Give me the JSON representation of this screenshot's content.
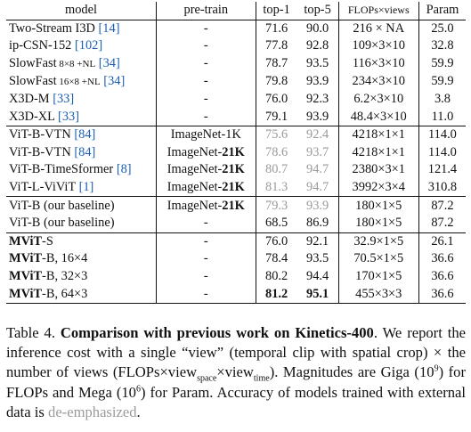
{
  "table": {
    "headers": {
      "model": "model",
      "pretrain": "pre-train",
      "top1": "top-1",
      "top5": "top-5",
      "flops": "FLOPs×views",
      "param": "Param"
    },
    "groups": [
      {
        "rows": [
          {
            "model": "Two-Stream I3D",
            "cite": "[14]",
            "extra": "",
            "pretrain": "-",
            "pretrain_bold": "",
            "top1": "71.6",
            "top5": "90.0",
            "flops": "216 × NA",
            "param": "25.0",
            "deemph": false
          },
          {
            "model": "ip-CSN-152",
            "cite": "[102]",
            "extra": "",
            "pretrain": "-",
            "pretrain_bold": "",
            "top1": "77.8",
            "top5": "92.8",
            "flops": "109×3×10",
            "param": "32.8",
            "deemph": false
          },
          {
            "model": "SlowFast",
            "cite": "[34]",
            "extra": " 8×8 +NL",
            "pretrain": "-",
            "pretrain_bold": "",
            "top1": "78.7",
            "top5": "93.5",
            "flops": "116×3×10",
            "param": "59.9",
            "deemph": false
          },
          {
            "model": "SlowFast",
            "cite": "[34]",
            "extra": " 16×8 +NL",
            "pretrain": "-",
            "pretrain_bold": "",
            "top1": "79.8",
            "top5": "93.9",
            "flops": "234×3×10",
            "param": "59.9",
            "deemph": false
          },
          {
            "model": "X3D-M",
            "cite": "[33]",
            "extra": "",
            "pretrain": "-",
            "pretrain_bold": "",
            "top1": "76.0",
            "top5": "92.3",
            "flops": "6.2×3×10",
            "param": "3.8",
            "deemph": false
          },
          {
            "model": "X3D-XL",
            "cite": "[33]",
            "extra": "",
            "pretrain": "-",
            "pretrain_bold": "",
            "top1": "79.1",
            "top5": "93.9",
            "flops": "48.4×3×10",
            "param": "11.0",
            "deemph": false
          }
        ]
      },
      {
        "rows": [
          {
            "model": "ViT-B-VTN",
            "cite": "[84]",
            "extra": "",
            "pretrain": "ImageNet-1K",
            "pretrain_bold": "",
            "top1": "75.6",
            "top5": "92.4",
            "flops": "4218×1×1",
            "param": "114.0",
            "deemph": true
          },
          {
            "model": "ViT-B-VTN",
            "cite": "[84]",
            "extra": "",
            "pretrain": "ImageNet-",
            "pretrain_bold": "21K",
            "top1": "78.6",
            "top5": "93.7",
            "flops": "4218×1×1",
            "param": "114.0",
            "deemph": true
          },
          {
            "model": "ViT-B-TimeSformer",
            "cite": "[8]",
            "extra": "",
            "pretrain": "ImageNet-",
            "pretrain_bold": "21K",
            "top1": "80.7",
            "top5": "94.7",
            "flops": "2380×3×1",
            "param": "121.4",
            "deemph": true
          },
          {
            "model": "ViT-L-ViViT",
            "cite": "[1]",
            "extra": "",
            "pretrain": "ImageNet-",
            "pretrain_bold": "21K",
            "top1": "81.3",
            "top5": "94.7",
            "flops": "3992×3×4",
            "param": "310.8",
            "deemph": true
          }
        ]
      },
      {
        "rows": [
          {
            "model": "ViT-B (our baseline)",
            "cite": "",
            "extra": "",
            "pretrain": "ImageNet-",
            "pretrain_bold": "21K",
            "top1": "79.3",
            "top5": "93.9",
            "flops": "180×1×5",
            "param": "87.2",
            "deemph": true
          },
          {
            "model": "ViT-B (our baseline)",
            "cite": "",
            "extra": "",
            "pretrain": "-",
            "pretrain_bold": "",
            "top1": "68.5",
            "top5": "86.9",
            "flops": "180×1×5",
            "param": "87.2",
            "deemph": false
          }
        ]
      },
      {
        "rows": [
          {
            "model_bold": "MViT",
            "model": "-S",
            "cite": "",
            "extra": "",
            "pretrain": "-",
            "pretrain_bold": "",
            "top1": "76.0",
            "top5": "92.1",
            "flops": "32.9×1×5",
            "param": "26.1",
            "deemph": false
          },
          {
            "model_bold": "MViT",
            "model": "-B, 16×4",
            "cite": "",
            "extra": "",
            "pretrain": "-",
            "pretrain_bold": "",
            "top1": "78.4",
            "top5": "93.5",
            "flops": "70.5×1×5",
            "param": "36.6",
            "deemph": false
          },
          {
            "model_bold": "MViT",
            "model": "-B, 32×3",
            "cite": "",
            "extra": "",
            "pretrain": "-",
            "pretrain_bold": "",
            "top1": "80.2",
            "top5": "94.4",
            "flops": "170×1×5",
            "param": "36.6",
            "deemph": false
          },
          {
            "model_bold": "MViT",
            "model": "-B, 64×3",
            "cite": "",
            "extra": "",
            "pretrain": "-",
            "pretrain_bold": "",
            "top1": "81.2",
            "top5": "95.1",
            "flops": "455×3×3",
            "param": "36.6",
            "deemph": false,
            "best": true
          }
        ]
      }
    ]
  },
  "caption": {
    "label": "Table 4. ",
    "title": "Comparison with previous work on Kinetics-400",
    "s1": ". We report the inference cost with a single “view” (temporal clip with spatial crop) × the number of views (FLOPs×view",
    "sub_space": "space",
    "s2": "×view",
    "sub_time": "time",
    "s3": "). Magnitudes are Giga (10",
    "sup_9": "9",
    "s4": ") for FLOPs and Mega (10",
    "sup_6": "6",
    "s5": ") for Param. Accuracy of models trained with external data is ",
    "deemph_word": "de-emphasized",
    "s6": "."
  }
}
